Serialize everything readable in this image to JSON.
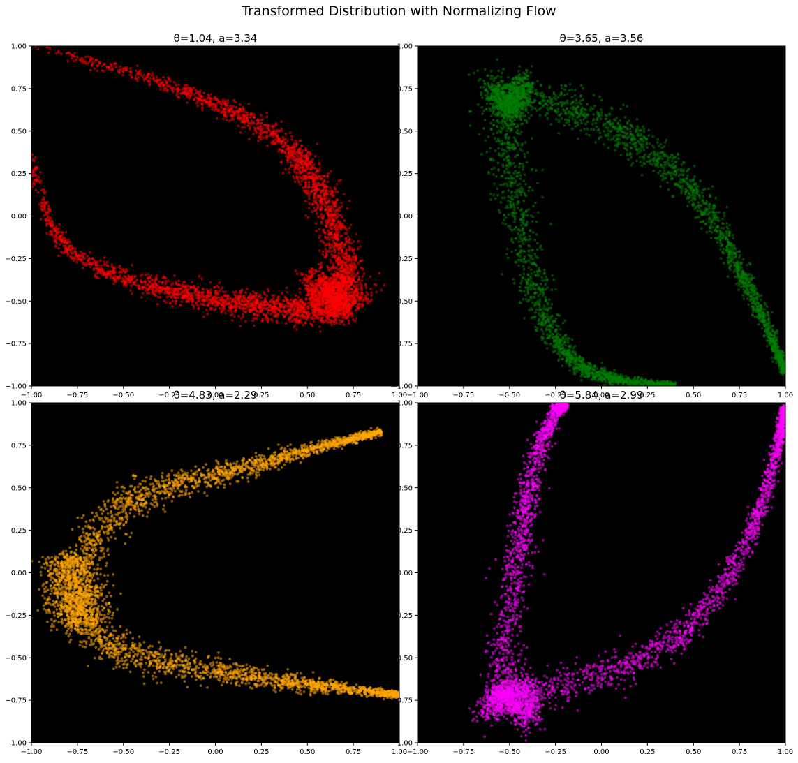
{
  "figure": {
    "suptitle": "Transformed Distribution with Normalizing Flow"
  },
  "chart_data": [
    {
      "type": "scatter",
      "title": "θ=1.04, a=3.34",
      "xlim": [
        -1.0,
        1.0
      ],
      "ylim": [
        -1.0,
        1.0
      ],
      "xticks": [
        "−1.00",
        "−0.75",
        "−0.50",
        "−0.25",
        "0.00",
        "0.25",
        "0.50",
        "0.75",
        "1.00"
      ],
      "yticks": [
        "−1.00",
        "−0.75",
        "−0.50",
        "−0.25",
        "0.00",
        "0.25",
        "0.50",
        "0.75",
        "1.00"
      ],
      "background": "#000000",
      "grid": false,
      "series": [
        {
          "color": "#ff0000",
          "arms": [
            {
              "path": [
                [
                  -1.0,
                  0.99
                ],
                [
                  -0.75,
                  0.93
                ],
                [
                  -0.5,
                  0.86
                ],
                [
                  -0.25,
                  0.77
                ],
                [
                  0.0,
                  0.66
                ],
                [
                  0.2,
                  0.56
                ],
                [
                  0.4,
                  0.41
                ],
                [
                  0.5,
                  0.28
                ],
                [
                  0.6,
                  0.08
                ],
                [
                  0.68,
                  -0.2
                ],
                [
                  0.72,
                  -0.42
                ]
              ],
              "spread_start": 0.01,
              "spread_end": 0.05,
              "bias_end": 0.6,
              "count": 1600
            },
            {
              "path": [
                [
                  -1.0,
                  0.37
                ],
                [
                  -0.97,
                  0.2
                ],
                [
                  -0.9,
                  -0.05
                ],
                [
                  -0.8,
                  -0.2
                ],
                [
                  -0.6,
                  -0.33
                ],
                [
                  -0.4,
                  -0.4
                ],
                [
                  -0.2,
                  -0.45
                ],
                [
                  0.0,
                  -0.49
                ],
                [
                  0.2,
                  -0.52
                ],
                [
                  0.4,
                  -0.55
                ],
                [
                  0.6,
                  -0.56
                ],
                [
                  0.72,
                  -0.52
                ]
              ],
              "spread_start": 0.01,
              "spread_end": 0.05,
              "bias_end": 0.55,
              "count": 1800
            },
            {
              "path": [
                [
                  0.5,
                  -0.45
                ],
                [
                  0.62,
                  -0.4
                ],
                [
                  0.7,
                  -0.45
                ],
                [
                  0.75,
                  -0.55
                ]
              ],
              "spread_start": 0.05,
              "spread_end": 0.07,
              "bias_end": 0,
              "count": 900
            }
          ]
        }
      ]
    },
    {
      "type": "scatter",
      "title": "θ=3.65, a=3.56",
      "xlim": [
        -1.0,
        1.0
      ],
      "ylim": [
        -1.0,
        1.0
      ],
      "xticks": [
        "−1.00",
        "−0.75",
        "−0.50",
        "−0.25",
        "0.00",
        "0.25",
        "0.50",
        "0.75",
        "1.00"
      ],
      "yticks": [
        "−1.00",
        "−0.75",
        "−0.50",
        "−0.25",
        "0.00",
        "0.25",
        "0.50",
        "0.75",
        "1.00"
      ],
      "background": "#000000",
      "grid": false,
      "series": [
        {
          "color": "#008000",
          "arms": [
            {
              "path": [
                [
                  -0.55,
                  0.72
                ],
                [
                  -0.3,
                  0.68
                ],
                [
                  -0.1,
                  0.6
                ],
                [
                  0.1,
                  0.5
                ],
                [
                  0.3,
                  0.35
                ],
                [
                  0.5,
                  0.15
                ],
                [
                  0.65,
                  -0.1
                ],
                [
                  0.78,
                  -0.38
                ],
                [
                  0.9,
                  -0.65
                ],
                [
                  1.0,
                  -0.92
                ]
              ],
              "spread_start": 0.07,
              "spread_end": 0.01,
              "bias_end": -0.6,
              "count": 1700
            },
            {
              "path": [
                [
                  -0.55,
                  0.72
                ],
                [
                  -0.5,
                  0.45
                ],
                [
                  -0.47,
                  0.15
                ],
                [
                  -0.42,
                  -0.2
                ],
                [
                  -0.35,
                  -0.5
                ],
                [
                  -0.25,
                  -0.75
                ],
                [
                  -0.1,
                  -0.9
                ],
                [
                  0.1,
                  -0.97
                ],
                [
                  0.4,
                  -1.0
                ]
              ],
              "spread_start": 0.07,
              "spread_end": 0.01,
              "bias_end": -0.6,
              "count": 1600
            },
            {
              "path": [
                [
                  -0.6,
                  0.66
                ],
                [
                  -0.5,
                  0.72
                ],
                [
                  -0.4,
                  0.7
                ]
              ],
              "spread_start": 0.07,
              "spread_end": 0.07,
              "bias_end": 0,
              "count": 700
            }
          ]
        }
      ]
    },
    {
      "type": "scatter",
      "title": "θ=4.83, a=2.29",
      "xlim": [
        -1.0,
        1.0
      ],
      "ylim": [
        -1.0,
        1.0
      ],
      "xticks": [
        "−1.00",
        "−0.75",
        "−0.50",
        "−0.25",
        "0.00",
        "0.25",
        "0.50",
        "0.75",
        "1.00"
      ],
      "yticks": [
        "−1.00",
        "−0.75",
        "−0.50",
        "−0.25",
        "0.00",
        "0.25",
        "0.50",
        "0.75",
        "1.00"
      ],
      "background": "#000000",
      "grid": false,
      "series": [
        {
          "color": "#ffa500",
          "arms": [
            {
              "path": [
                [
                  -0.75,
                  -0.12
                ],
                [
                  -0.7,
                  0.15
                ],
                [
                  -0.55,
                  0.35
                ],
                [
                  -0.35,
                  0.48
                ],
                [
                  -0.1,
                  0.55
                ],
                [
                  0.2,
                  0.63
                ],
                [
                  0.5,
                  0.72
                ],
                [
                  0.9,
                  0.83
                ]
              ],
              "spread_start": 0.07,
              "spread_end": 0.01,
              "bias_end": -0.6,
              "count": 1700
            },
            {
              "path": [
                [
                  -0.75,
                  -0.12
                ],
                [
                  -0.7,
                  -0.3
                ],
                [
                  -0.55,
                  -0.45
                ],
                [
                  -0.3,
                  -0.53
                ],
                [
                  0.0,
                  -0.58
                ],
                [
                  0.3,
                  -0.63
                ],
                [
                  0.6,
                  -0.67
                ],
                [
                  1.0,
                  -0.72
                ]
              ],
              "spread_start": 0.07,
              "spread_end": 0.01,
              "bias_end": -0.6,
              "count": 1700
            },
            {
              "path": [
                [
                  -0.8,
                  0.1
                ],
                [
                  -0.78,
                  -0.12
                ],
                [
                  -0.74,
                  -0.32
                ]
              ],
              "spread_start": 0.07,
              "spread_end": 0.07,
              "bias_end": 0,
              "count": 900
            }
          ]
        }
      ]
    },
    {
      "type": "scatter",
      "title": "θ=5.84, a=2.99",
      "xlim": [
        -1.0,
        1.0
      ],
      "ylim": [
        -1.0,
        1.0
      ],
      "xticks": [
        "−1.00",
        "−0.75",
        "−0.50",
        "−0.25",
        "0.00",
        "0.25",
        "0.50",
        "0.75",
        "1.00"
      ],
      "yticks": [
        "−1.00",
        "−0.75",
        "−0.50",
        "−0.25",
        "0.00",
        "0.25",
        "0.50",
        "0.75",
        "1.00"
      ],
      "background": "#000000",
      "grid": false,
      "series": [
        {
          "color": "#ff00ff",
          "arms": [
            {
              "path": [
                [
                  -0.55,
                  -0.78
                ],
                [
                  -0.52,
                  -0.4
                ],
                [
                  -0.47,
                  0.0
                ],
                [
                  -0.42,
                  0.35
                ],
                [
                  -0.35,
                  0.7
                ],
                [
                  -0.25,
                  0.95
                ],
                [
                  -0.2,
                  1.0
                ]
              ],
              "spread_start": 0.06,
              "spread_end": 0.01,
              "bias_end": -0.6,
              "count": 1500
            },
            {
              "path": [
                [
                  -0.55,
                  -0.78
                ],
                [
                  -0.3,
                  -0.68
                ],
                [
                  -0.05,
                  -0.62
                ],
                [
                  0.2,
                  -0.52
                ],
                [
                  0.45,
                  -0.35
                ],
                [
                  0.65,
                  -0.1
                ],
                [
                  0.8,
                  0.2
                ],
                [
                  0.9,
                  0.5
                ],
                [
                  0.97,
                  0.8
                ],
                [
                  1.0,
                  0.98
                ]
              ],
              "spread_start": 0.06,
              "spread_end": 0.01,
              "bias_end": -0.6,
              "count": 1700
            },
            {
              "path": [
                [
                  -0.6,
                  -0.7
                ],
                [
                  -0.5,
                  -0.78
                ],
                [
                  -0.35,
                  -0.75
                ]
              ],
              "spread_start": 0.07,
              "spread_end": 0.07,
              "bias_end": 0,
              "count": 900
            }
          ]
        }
      ]
    }
  ]
}
